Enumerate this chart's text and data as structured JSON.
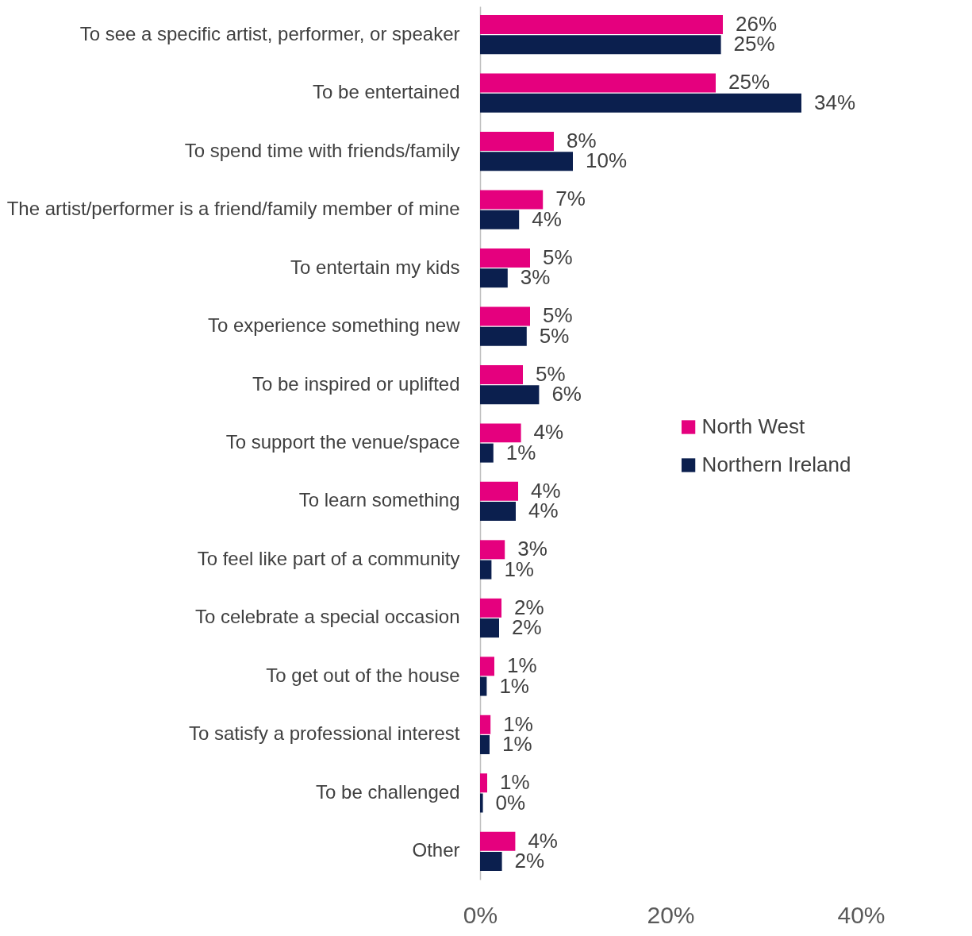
{
  "chart_data": {
    "type": "bar",
    "orientation": "horizontal",
    "categories": [
      "To see a specific artist, performer, or speaker",
      "To be entertained",
      "To spend time with friends/family",
      "The artist/performer is a friend/family member of mine",
      "To entertain my kids",
      "To experience something new",
      "To be inspired or uplifted",
      "To support the venue/space",
      "To learn something",
      "To feel like part of a community",
      "To celebrate a special occasion",
      "To get out of the house",
      "To satisfy a professional interest",
      "To be challenged",
      "Other"
    ],
    "series": [
      {
        "name": "North West",
        "color": "#e5007e",
        "values": [
          25.5,
          24.75,
          7.75,
          6.6,
          5.25,
          5.25,
          4.5,
          4.3,
          4.0,
          2.6,
          2.25,
          1.5,
          1.1,
          0.75,
          3.7
        ],
        "value_labels": [
          "26%",
          "25%",
          "8%",
          "7%",
          "5%",
          "5%",
          "5%",
          "4%",
          "4%",
          "3%",
          "2%",
          "1%",
          "1%",
          "1%",
          "4%"
        ]
      },
      {
        "name": "Northern Ireland",
        "color": "#0b1f4e",
        "values": [
          25.3,
          33.75,
          9.75,
          4.1,
          2.9,
          4.9,
          6.2,
          1.4,
          3.75,
          1.2,
          2.0,
          0.7,
          1.0,
          0.3,
          2.3
        ],
        "value_labels": [
          "25%",
          "34%",
          "10%",
          "4%",
          "3%",
          "5%",
          "6%",
          "1%",
          "4%",
          "1%",
          "2%",
          "1%",
          "1%",
          "0%",
          "2%"
        ]
      }
    ],
    "xlim": [
      0,
      40
    ],
    "xticks": [
      {
        "value": 0,
        "label": "0%"
      },
      {
        "value": 20,
        "label": "20%"
      },
      {
        "value": 40,
        "label": "40%"
      }
    ],
    "legend": "right",
    "grid": false
  }
}
